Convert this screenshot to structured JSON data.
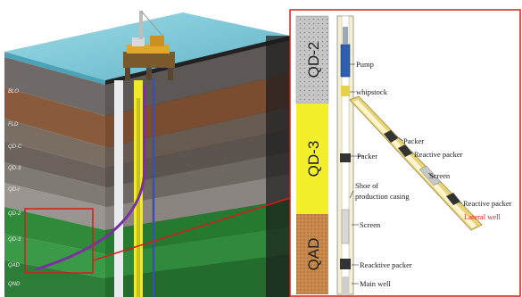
{
  "strata_labels": [
    "BLO",
    "FLD",
    "QD-C",
    "QD-3",
    "QD-I",
    "QD-2",
    "QD-3",
    "QAD",
    "QND"
  ],
  "zones": [
    "QD-2",
    "QD-3",
    "QAD"
  ],
  "labels": {
    "pump": "Pump",
    "whipstock": "whipstock",
    "packer_left": "Packer",
    "packer_top": "Packer",
    "reactive_packer_upper": "Reactive packer",
    "screen_lateral": "Screen",
    "shoe_line1": "Shoe of",
    "shoe_line2": "production casing",
    "reactive_packer_lateral": "Reactive packer",
    "lateral_well": "Lateral well",
    "screen_main": "Screen",
    "reactive_packer_main": "Reacktive packer",
    "main_well": "Main well"
  },
  "colors": {
    "sea": "#7ec8d6",
    "callout": "#d81b1b",
    "zone_qd2": "#c9c9c9",
    "zone_qd3": "#f3ef2a",
    "zone_qad": "#c8874a",
    "lateral_well": "#d81b1b"
  }
}
